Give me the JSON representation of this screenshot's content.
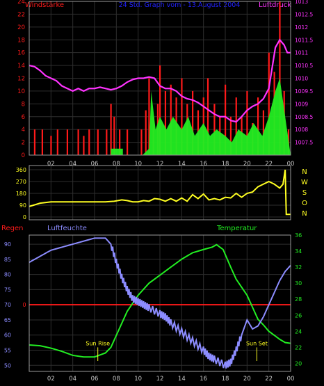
{
  "colors": {
    "background": "#000000",
    "grid": "#2e2e2e",
    "frame": "#9a9a9a",
    "red": "#ff1a1a",
    "green": "#22ee22",
    "magenta": "#ff33ff",
    "blue": "#2222ff",
    "yellow": "#ffff22",
    "lavender": "#8c8cff",
    "hours": "#c8c8c8"
  },
  "header": {
    "left": "Windstärke",
    "center": "24 Std. Graph vom - 13.August 2004",
    "right": "Luftdruck"
  },
  "hour_labels": [
    "02",
    "04",
    "06",
    "08",
    "10",
    "12",
    "14",
    "16",
    "18",
    "20",
    "22",
    "00"
  ],
  "chart_data": [
    {
      "type": "bar",
      "title": "",
      "series": [
        {
          "name": "Windstärke",
          "axis": "left"
        },
        {
          "name": "Luftdruck",
          "axis": "right"
        }
      ],
      "y_left": {
        "label": "Windstärke",
        "range": [
          0,
          24
        ],
        "ticks": [
          0,
          2,
          4,
          6,
          8,
          10,
          12,
          14,
          16,
          18,
          20,
          22,
          24
        ]
      },
      "y_right": {
        "label": "Luftdruck",
        "range": [
          1007,
          1013
        ],
        "ticks": [
          "1007.5",
          "1008",
          "1008.5",
          "1009",
          "1009.5",
          "1010",
          "1010.5",
          "1011",
          "1011.5",
          "1012",
          "1012.5",
          "1013"
        ]
      },
      "x": {
        "range": [
          0,
          24
        ],
        "ticks": [
          "02",
          "04",
          "06",
          "08",
          "10",
          "12",
          "14",
          "16",
          "18",
          "20",
          "22",
          "00"
        ]
      },
      "gust_peaks": [
        [
          0.5,
          4
        ],
        [
          1.2,
          4
        ],
        [
          2.0,
          3
        ],
        [
          2.6,
          4
        ],
        [
          3.5,
          4
        ],
        [
          4.5,
          4
        ],
        [
          5.0,
          3
        ],
        [
          5.5,
          4
        ],
        [
          6.3,
          4
        ],
        [
          7.1,
          4
        ],
        [
          7.5,
          8
        ],
        [
          7.8,
          6
        ],
        [
          8.3,
          4
        ],
        [
          9.0,
          4
        ],
        [
          10.3,
          4
        ],
        [
          10.7,
          7
        ],
        [
          11.0,
          12
        ],
        [
          11.4,
          6
        ],
        [
          11.8,
          8
        ],
        [
          12.0,
          14
        ],
        [
          12.5,
          10
        ],
        [
          13.0,
          11
        ],
        [
          13.5,
          9
        ],
        [
          14.0,
          12
        ],
        [
          14.5,
          8
        ],
        [
          15.0,
          10
        ],
        [
          15.5,
          7
        ],
        [
          16.0,
          9
        ],
        [
          16.4,
          12
        ],
        [
          17.0,
          8
        ],
        [
          17.5,
          6
        ],
        [
          18.0,
          11
        ],
        [
          18.5,
          6
        ],
        [
          19.0,
          9
        ],
        [
          19.5,
          6
        ],
        [
          20.0,
          10
        ],
        [
          20.5,
          5
        ],
        [
          21.0,
          9
        ],
        [
          21.5,
          7
        ],
        [
          22.0,
          16
        ],
        [
          22.5,
          13
        ],
        [
          23.0,
          24
        ],
        [
          23.4,
          10
        ],
        [
          23.8,
          4
        ]
      ],
      "mean_wind": [
        [
          0,
          0
        ],
        [
          7.5,
          0
        ],
        [
          7.5,
          1
        ],
        [
          8.6,
          1
        ],
        [
          8.6,
          0
        ],
        [
          10.4,
          0
        ],
        [
          11.0,
          1
        ],
        [
          11.2,
          10
        ],
        [
          11.6,
          4
        ],
        [
          12.0,
          6
        ],
        [
          12.6,
          4
        ],
        [
          13.2,
          6
        ],
        [
          14.0,
          4
        ],
        [
          14.6,
          6
        ],
        [
          15.2,
          3
        ],
        [
          16.0,
          5
        ],
        [
          16.6,
          3
        ],
        [
          17.2,
          4
        ],
        [
          18.0,
          3
        ],
        [
          18.6,
          2
        ],
        [
          19.2,
          4
        ],
        [
          20.0,
          3
        ],
        [
          20.6,
          5
        ],
        [
          21.4,
          3
        ],
        [
          22.0,
          6
        ],
        [
          22.6,
          10
        ],
        [
          23.0,
          12
        ],
        [
          23.5,
          6
        ],
        [
          24,
          0
        ]
      ],
      "pressure": [
        [
          0,
          1010.5
        ],
        [
          0.5,
          1010.45
        ],
        [
          1.0,
          1010.3
        ],
        [
          1.5,
          1010.1
        ],
        [
          2.0,
          1010.0
        ],
        [
          2.5,
          1009.9
        ],
        [
          3.0,
          1009.7
        ],
        [
          3.5,
          1009.6
        ],
        [
          4.0,
          1009.5
        ],
        [
          4.5,
          1009.6
        ],
        [
          5.0,
          1009.5
        ],
        [
          5.5,
          1009.6
        ],
        [
          6.0,
          1009.6
        ],
        [
          6.5,
          1009.65
        ],
        [
          7.0,
          1009.6
        ],
        [
          7.5,
          1009.55
        ],
        [
          8.0,
          1009.6
        ],
        [
          8.5,
          1009.7
        ],
        [
          9.0,
          1009.85
        ],
        [
          9.5,
          1009.95
        ],
        [
          10.0,
          1010.0
        ],
        [
          10.5,
          1010.0
        ],
        [
          11.0,
          1010.05
        ],
        [
          11.5,
          1010.0
        ],
        [
          12.0,
          1009.7
        ],
        [
          12.5,
          1009.6
        ],
        [
          13.0,
          1009.6
        ],
        [
          13.5,
          1009.5
        ],
        [
          14.0,
          1009.3
        ],
        [
          14.5,
          1009.2
        ],
        [
          15.0,
          1009.15
        ],
        [
          15.5,
          1009.05
        ],
        [
          16.0,
          1008.9
        ],
        [
          16.5,
          1008.75
        ],
        [
          17.0,
          1008.6
        ],
        [
          17.5,
          1008.5
        ],
        [
          18.0,
          1008.5
        ],
        [
          18.5,
          1008.35
        ],
        [
          19.0,
          1008.3
        ],
        [
          19.5,
          1008.5
        ],
        [
          20.0,
          1008.75
        ],
        [
          20.5,
          1008.9
        ],
        [
          21.0,
          1009.0
        ],
        [
          21.5,
          1009.2
        ],
        [
          22.0,
          1009.6
        ],
        [
          22.3,
          1010.4
        ],
        [
          22.6,
          1011.2
        ],
        [
          23.0,
          1011.5
        ],
        [
          23.4,
          1011.3
        ],
        [
          23.7,
          1011.0
        ],
        [
          24.0,
          1011.0
        ]
      ]
    },
    {
      "type": "line",
      "title": "",
      "series": [
        {
          "name": "Windrichtung"
        }
      ],
      "y": {
        "range": [
          0,
          360
        ],
        "ticks": [
          0,
          90,
          180,
          270,
          360
        ]
      },
      "compass": [
        "N",
        "W",
        "S",
        "O",
        "N"
      ],
      "x": {
        "range": [
          0,
          24
        ],
        "ticks": [
          "02",
          "04",
          "06",
          "08",
          "10",
          "12",
          "14",
          "16",
          "18",
          "20",
          "22",
          "00"
        ]
      },
      "points": [
        [
          0,
          80
        ],
        [
          0.4,
          90
        ],
        [
          1.0,
          105
        ],
        [
          2.0,
          115
        ],
        [
          3.0,
          115
        ],
        [
          4.0,
          115
        ],
        [
          5.0,
          115
        ],
        [
          6.0,
          115
        ],
        [
          7.0,
          115
        ],
        [
          7.8,
          120
        ],
        [
          8.5,
          130
        ],
        [
          9.0,
          125
        ],
        [
          9.5,
          115
        ],
        [
          10.0,
          115
        ],
        [
          10.5,
          125
        ],
        [
          11.0,
          120
        ],
        [
          11.5,
          140
        ],
        [
          12.0,
          135
        ],
        [
          12.5,
          120
        ],
        [
          13.0,
          140
        ],
        [
          13.5,
          120
        ],
        [
          14.0,
          145
        ],
        [
          14.5,
          120
        ],
        [
          15.0,
          170
        ],
        [
          15.5,
          140
        ],
        [
          16.0,
          175
        ],
        [
          16.5,
          130
        ],
        [
          17.0,
          140
        ],
        [
          17.5,
          130
        ],
        [
          18.0,
          150
        ],
        [
          18.5,
          145
        ],
        [
          19.0,
          180
        ],
        [
          19.5,
          150
        ],
        [
          20.0,
          180
        ],
        [
          20.5,
          190
        ],
        [
          21.0,
          230
        ],
        [
          21.5,
          250
        ],
        [
          22.0,
          270
        ],
        [
          22.5,
          250
        ],
        [
          23.0,
          220
        ],
        [
          23.3,
          250
        ],
        [
          23.5,
          360
        ],
        [
          23.6,
          20
        ],
        [
          24,
          20
        ]
      ]
    },
    {
      "type": "line",
      "title": "",
      "series": [
        {
          "name": "Regen",
          "axis": "none"
        },
        {
          "name": "Luftfeuchte",
          "axis": "left"
        },
        {
          "name": "Temperatur",
          "axis": "right"
        }
      ],
      "y_left": {
        "label": "Luftfeuchte",
        "range": [
          48,
          93
        ],
        "ticks": [
          50,
          55,
          60,
          65,
          70,
          75,
          80,
          85,
          90
        ]
      },
      "y_right": {
        "label": "Temperatur",
        "range": [
          19,
          36
        ],
        "ticks": [
          20,
          22,
          24,
          26,
          28,
          30,
          32,
          34,
          36
        ]
      },
      "x": {
        "range": [
          0,
          24
        ],
        "ticks": [
          "02",
          "04",
          "06",
          "08",
          "10",
          "12",
          "14",
          "16",
          "18",
          "20",
          "22",
          "00"
        ]
      },
      "rain_label": "0",
      "rain": [
        [
          0,
          0
        ],
        [
          24,
          0
        ]
      ],
      "humidity": [
        [
          0,
          84
        ],
        [
          1.0,
          86
        ],
        [
          2.0,
          88
        ],
        [
          3.0,
          89
        ],
        [
          4.0,
          90
        ],
        [
          5.0,
          91
        ],
        [
          6.0,
          92
        ],
        [
          7.0,
          92
        ],
        [
          7.5,
          90
        ],
        [
          8.0,
          84
        ],
        [
          8.5,
          79
        ],
        [
          9.0,
          75
        ],
        [
          9.5,
          72
        ],
        [
          10.0,
          71
        ],
        [
          10.5,
          70
        ],
        [
          11.0,
          69
        ],
        [
          12.0,
          67
        ],
        [
          12.5,
          66
        ],
        [
          13.0,
          64
        ],
        [
          14.0,
          61
        ],
        [
          15.0,
          58
        ],
        [
          16.0,
          55
        ],
        [
          16.5,
          53
        ],
        [
          17.0,
          52
        ],
        [
          18.0,
          50
        ],
        [
          18.5,
          51
        ],
        [
          19.0,
          55
        ],
        [
          19.5,
          60
        ],
        [
          20.0,
          65
        ],
        [
          20.5,
          62
        ],
        [
          21.0,
          63
        ],
        [
          21.5,
          66
        ],
        [
          22.0,
          70
        ],
        [
          22.5,
          74
        ],
        [
          23.0,
          78
        ],
        [
          23.5,
          81
        ],
        [
          24.0,
          83
        ]
      ],
      "temperature": [
        [
          0,
          22.3
        ],
        [
          1.0,
          22.2
        ],
        [
          2.0,
          21.9
        ],
        [
          3.0,
          21.5
        ],
        [
          4.0,
          21.0
        ],
        [
          5.0,
          20.8
        ],
        [
          6.0,
          20.8
        ],
        [
          7.0,
          21.3
        ],
        [
          7.5,
          22.0
        ],
        [
          8.0,
          23.5
        ],
        [
          8.5,
          25.0
        ],
        [
          9.0,
          26.5
        ],
        [
          9.5,
          27.5
        ],
        [
          10.0,
          28.5
        ],
        [
          11.0,
          30.0
        ],
        [
          12.0,
          31.0
        ],
        [
          13.0,
          32.0
        ],
        [
          14.0,
          33.0
        ],
        [
          15.0,
          33.8
        ],
        [
          16.0,
          34.2
        ],
        [
          16.8,
          34.5
        ],
        [
          17.2,
          34.8
        ],
        [
          17.8,
          34.2
        ],
        [
          18.5,
          32.0
        ],
        [
          19.0,
          30.5
        ],
        [
          19.5,
          29.5
        ],
        [
          20.0,
          28.5
        ],
        [
          20.5,
          27.0
        ],
        [
          21.0,
          25.5
        ],
        [
          21.5,
          24.8
        ],
        [
          22.0,
          24.0
        ],
        [
          22.5,
          23.5
        ],
        [
          23.0,
          23.0
        ],
        [
          23.5,
          22.6
        ],
        [
          24.0,
          22.5
        ]
      ],
      "annotations": [
        {
          "text": "Sun Rise",
          "x": 6.3
        },
        {
          "text": "Sun Set",
          "x": 20.9
        }
      ]
    }
  ]
}
